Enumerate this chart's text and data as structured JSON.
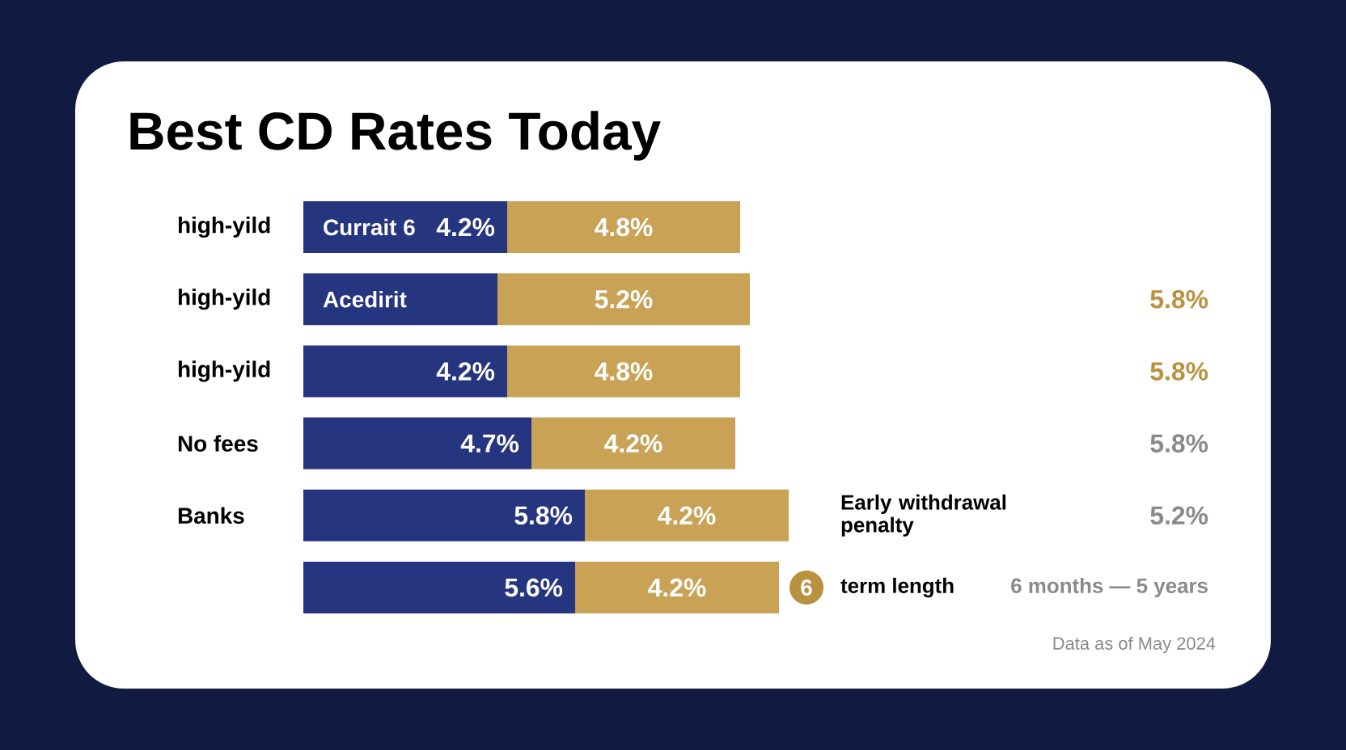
{
  "chart_data": {
    "type": "bar",
    "orientation": "horizontal",
    "stacked": true,
    "title": "Best CD Rates Today",
    "categories": [
      "high-yild",
      "high-yild",
      "high-yild",
      "No fees",
      "Banks",
      null
    ],
    "xlim": [
      0,
      10
    ],
    "series": [
      {
        "color": "#26357f",
        "values": [
          4.2,
          4.0,
          4.2,
          4.7,
          5.8,
          5.6
        ],
        "value_labels": [
          "4.2%",
          null,
          "4.2%",
          "4.7%",
          "5.8%",
          "5.6%"
        ]
      },
      {
        "color": "#c9a256",
        "values": [
          4.8,
          5.2,
          4.8,
          4.2,
          4.2,
          4.2
        ],
        "value_labels": [
          "4.8%",
          "5.2%",
          "4.8%",
          "4.2%",
          "4.2%",
          "4.2%"
        ]
      }
    ],
    "annotations": [
      "Currait 6",
      "Acedirit",
      "5.8%",
      "5.8%",
      "5.8%",
      "5.2%",
      "Early withdrawal penalty",
      "6",
      "term length",
      "6 months — 5 years",
      "Data as of May 2024"
    ]
  }
}
